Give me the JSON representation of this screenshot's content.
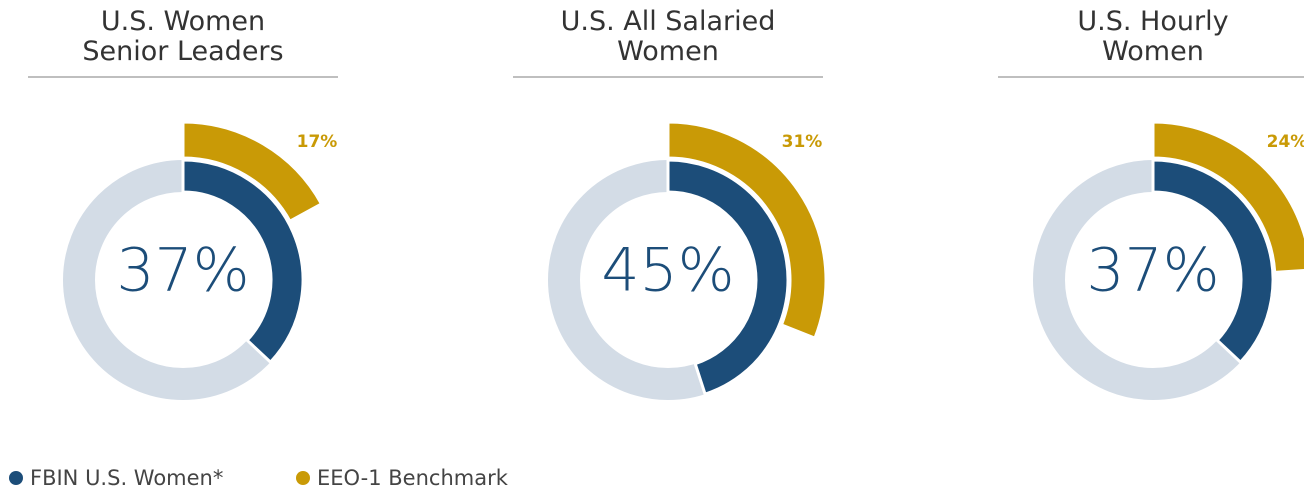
{
  "chart_data": [
    {
      "type": "pie",
      "title": "U.S. Women\nSenior Leaders",
      "series": [
        {
          "name": "FBIN U.S. Women*",
          "color": "#1c4d79",
          "values": [
            37
          ],
          "value_labels": [
            "37%"
          ]
        },
        {
          "name": "EEO-1 Benchmark",
          "color": "#c99a06",
          "values": [
            17
          ],
          "value_labels": [
            "17%"
          ]
        }
      ]
    },
    {
      "type": "pie",
      "title": "U.S. All Salaried\nWomen",
      "series": [
        {
          "name": "FBIN U.S. Women*",
          "color": "#1c4d79",
          "values": [
            45
          ],
          "value_labels": [
            "45%"
          ]
        },
        {
          "name": "EEO-1 Benchmark",
          "color": "#c99a06",
          "values": [
            31
          ],
          "value_labels": [
            "31%"
          ]
        }
      ]
    },
    {
      "type": "pie",
      "title": "U.S. Hourly\nWomen",
      "series": [
        {
          "name": "FBIN U.S. Women*",
          "color": "#1c4d79",
          "values": [
            37
          ],
          "value_labels": [
            "37%"
          ]
        },
        {
          "name": "EEO-1 Benchmark",
          "color": "#c99a06",
          "values": [
            24
          ],
          "value_labels": [
            "24%"
          ]
        }
      ]
    }
  ]
}
